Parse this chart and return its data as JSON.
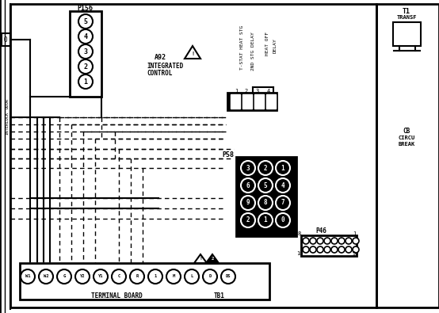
{
  "bg_color": "#ffffff",
  "line_color": "#000000",
  "figsize": [
    5.54,
    3.95
  ],
  "dpi": 100,
  "p156_nums": [
    "5",
    "4",
    "3",
    "2",
    "1"
  ],
  "p58_layout": [
    [
      "3",
      "2",
      "1"
    ],
    [
      "6",
      "5",
      "4"
    ],
    [
      "9",
      "8",
      "7"
    ],
    [
      "2",
      "1",
      "0"
    ]
  ],
  "term_labels": [
    "W1",
    "W2",
    "G",
    "Y2",
    "Y1",
    "C",
    "R",
    "1",
    "M",
    "L",
    "D",
    "DS"
  ]
}
